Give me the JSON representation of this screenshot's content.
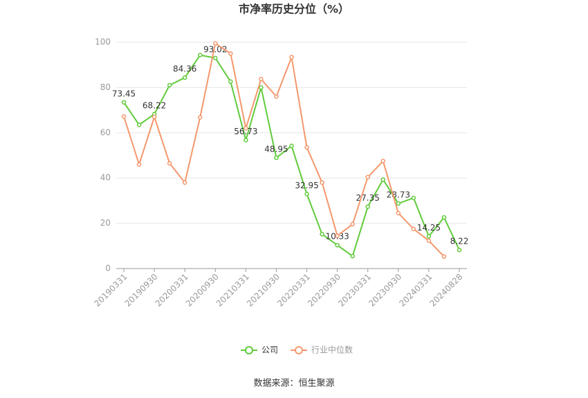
{
  "chart_data": {
    "type": "line",
    "title": "市净率历史分位（%）",
    "source": "数据来源：恒生聚源",
    "categories": [
      "20190331",
      null,
      "20190930",
      null,
      "20200331",
      null,
      "20200930",
      null,
      "20210331",
      null,
      "20210930",
      null,
      "20220331",
      null,
      "20220930",
      null,
      "20230331",
      null,
      "20230930",
      null,
      "20240331",
      null,
      "20240828"
    ],
    "series": [
      {
        "name": "公司",
        "color": "#5fcb3a",
        "values": [
          73.45,
          63.5,
          68.22,
          81,
          84.36,
          94.3,
          93.02,
          82.6,
          56.73,
          80,
          48.95,
          54.2,
          32.95,
          15.2,
          10.33,
          5.5,
          27.35,
          39.3,
          28.73,
          31.2,
          14.25,
          22.6,
          8.22
        ],
        "value_labels": [
          "73.45",
          null,
          "68.22",
          null,
          "84.36",
          null,
          "93.02",
          null,
          "56.73",
          null,
          "48.95",
          null,
          "32.95",
          null,
          "10.33",
          null,
          "27.35",
          null,
          "28.73",
          null,
          "14.25",
          null,
          "8.22"
        ]
      },
      {
        "name": "行业中位数",
        "color": "#f4976c",
        "values": [
          67.2,
          46,
          67,
          46.5,
          38,
          66.8,
          99.5,
          95,
          62,
          83.7,
          76,
          93.4,
          53.5,
          38,
          14.5,
          19.6,
          40.4,
          47.5,
          24.5,
          17.5,
          12.3,
          5.3,
          null
        ]
      }
    ],
    "ylim": [
      0,
      100
    ],
    "yticks": [
      0,
      20,
      40,
      60,
      80,
      100
    ],
    "grid": true,
    "legend": "bottom"
  }
}
